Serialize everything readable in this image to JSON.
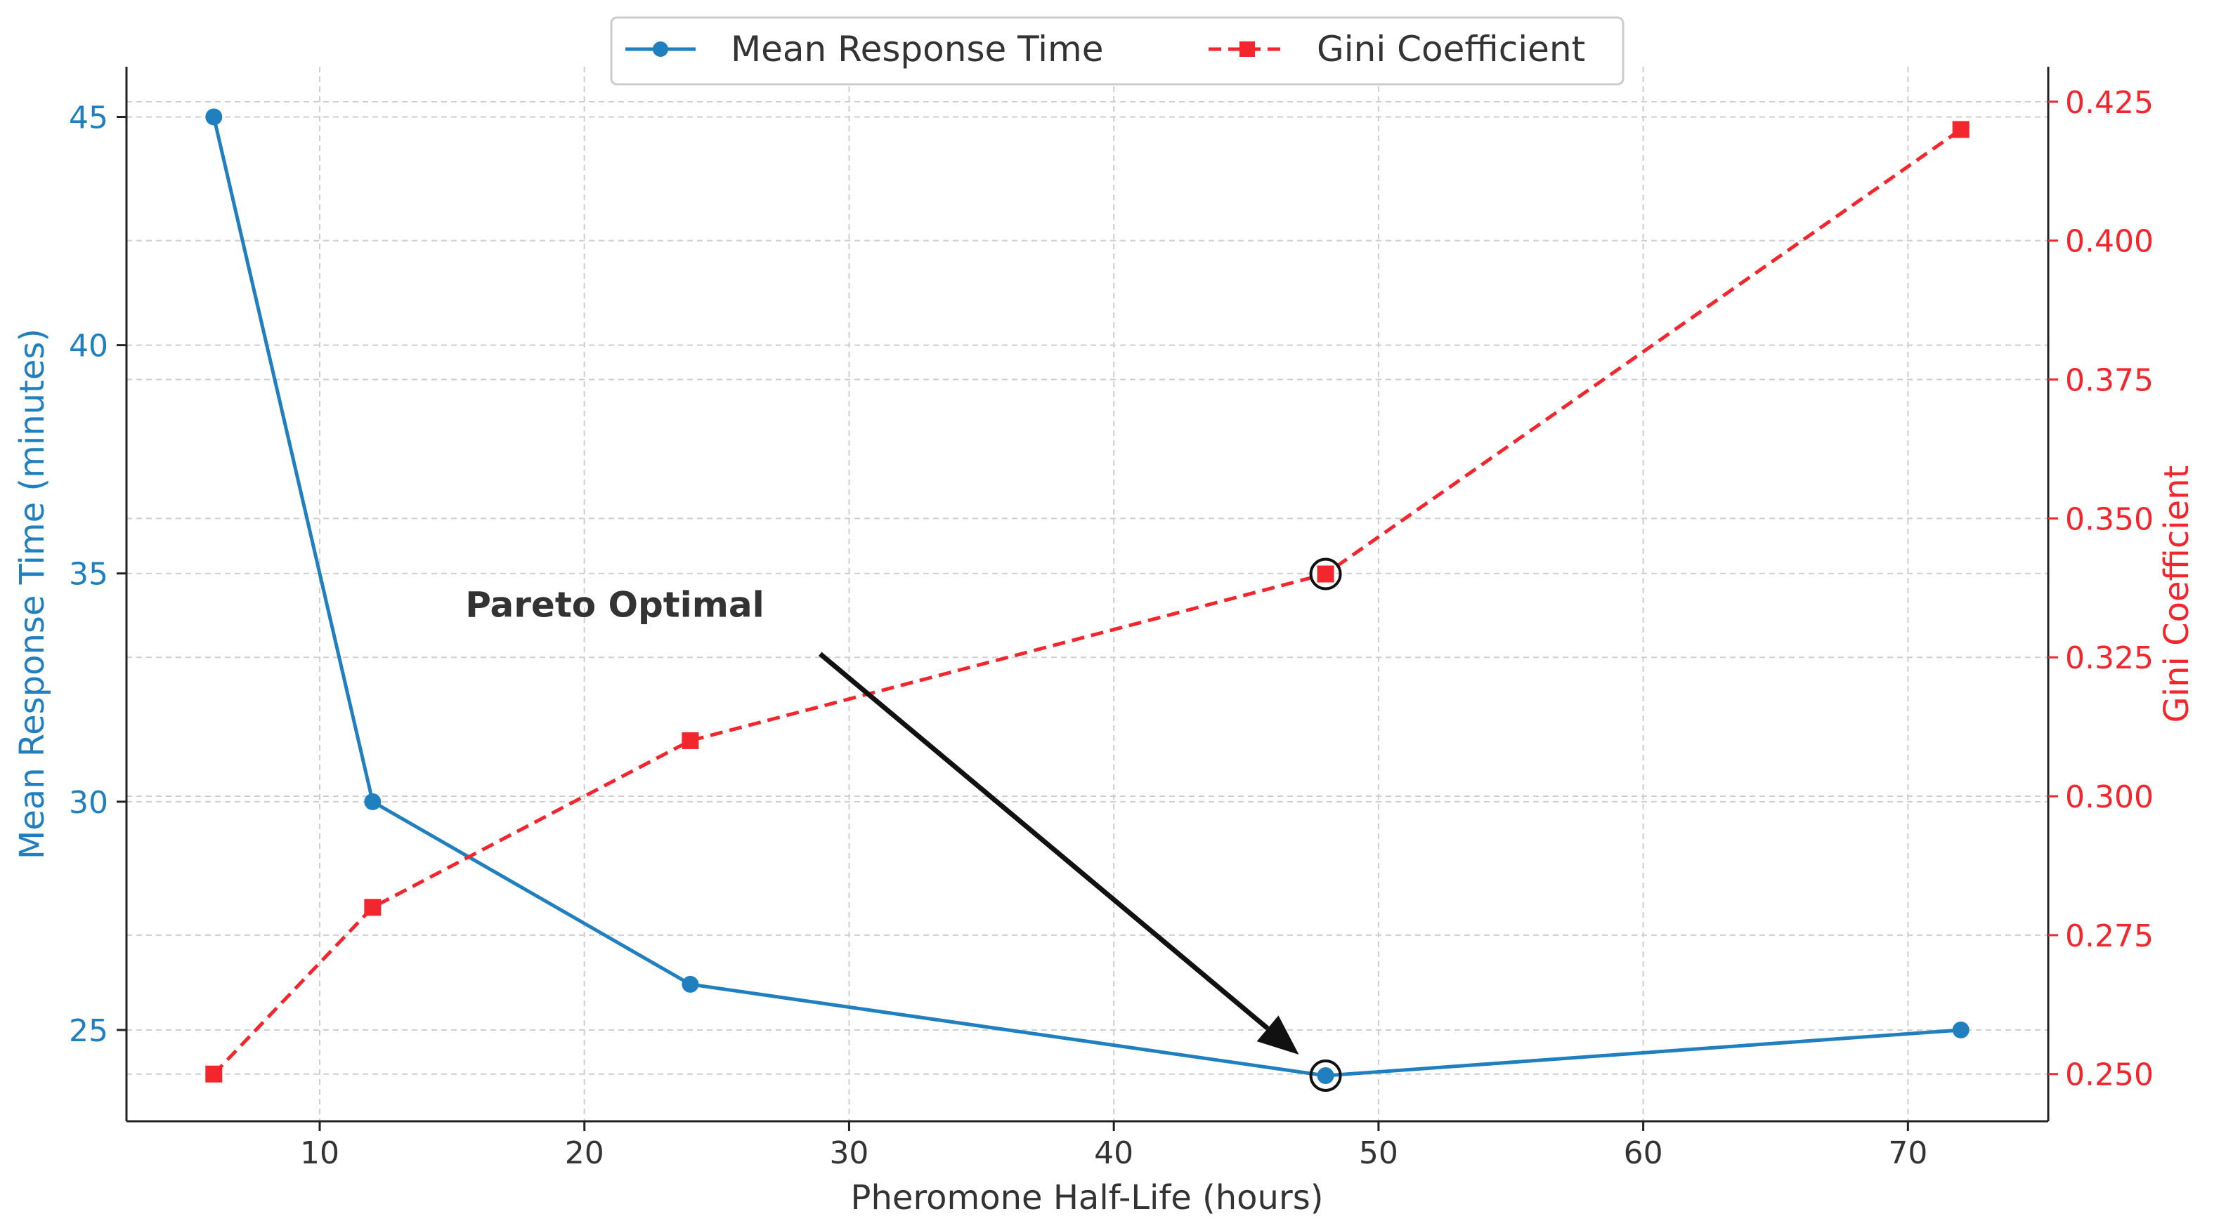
{
  "chart_data": {
    "type": "line",
    "x": [
      6,
      12,
      24,
      48,
      72
    ],
    "xlabel": "Pheromone Half-Life (hours)",
    "xlim": [
      2.7,
      75.3
    ],
    "xticks": [
      10,
      20,
      30,
      40,
      50,
      60,
      70
    ],
    "grid": true,
    "legend_position": "top-center",
    "series": [
      {
        "name": "Mean Response Time",
        "axis": "left",
        "values": [
          45,
          30,
          26,
          24,
          25
        ],
        "color": "#1f7fbf",
        "marker": "circle",
        "linestyle": "solid"
      },
      {
        "name": "Gini Coefficient",
        "axis": "right",
        "values": [
          0.25,
          0.28,
          0.31,
          0.34,
          0.42
        ],
        "color": "#f2262c",
        "marker": "square",
        "linestyle": "dashed"
      }
    ],
    "y_left": {
      "label": "Mean Response Time (minutes)",
      "lim": [
        23.0,
        46.1
      ],
      "ticks": [
        25,
        30,
        35,
        40,
        45
      ],
      "color": "#1f7fbf"
    },
    "y_right": {
      "label": "Gini Coefficient",
      "lim": [
        0.2415,
        0.4313
      ],
      "ticks": [
        0.25,
        0.275,
        0.3,
        0.325,
        0.35,
        0.375,
        0.4,
        0.425
      ],
      "tick_labels": [
        "0.250",
        "0.275",
        "0.300",
        "0.325",
        "0.350",
        "0.375",
        "0.400",
        "0.425"
      ],
      "color": "#f2262c"
    },
    "annotation": {
      "text": "Pareto Optimal",
      "target_x": 48,
      "target_y": 24,
      "text_x": 15.5,
      "text_y": 34.3,
      "highlight_points": [
        {
          "series": "Mean Response Time",
          "x": 48,
          "y": 24
        },
        {
          "series": "Gini Coefficient",
          "x": 48,
          "y": 0.34
        }
      ]
    }
  }
}
